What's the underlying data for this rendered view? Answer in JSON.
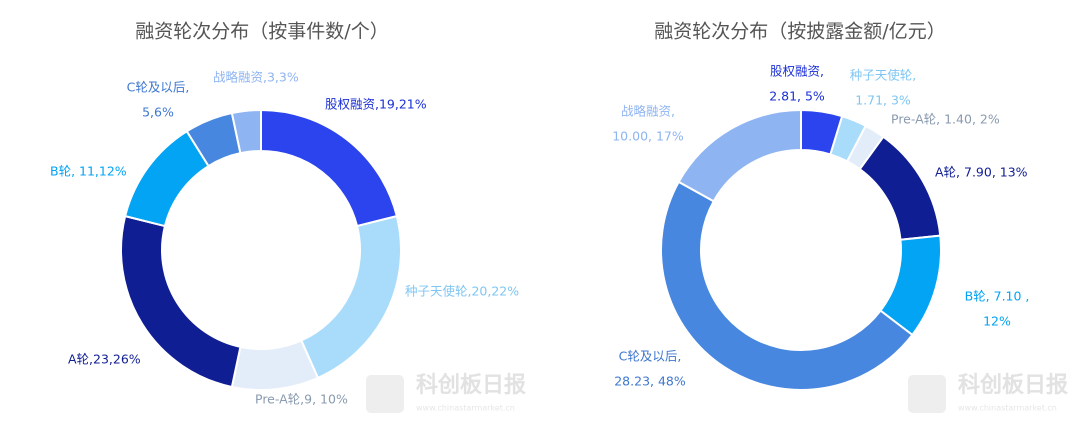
{
  "chart_data": [
    {
      "type": "donut",
      "title": "融资轮次分布（按事件数/个）",
      "categories": [
        "股权融资",
        "种子天使轮",
        "Pre-A轮",
        "A轮",
        "B轮",
        "C轮及以后",
        "战略融资"
      ],
      "values": [
        19,
        20,
        9,
        23,
        11,
        5,
        3
      ],
      "labels": [
        [
          "股权融资,19,21%"
        ],
        [
          "种子天使轮,20,22%"
        ],
        [
          "Pre-A轮,9, 10%"
        ],
        [
          "A轮,23,26%"
        ],
        [
          "B轮, 11,12%"
        ],
        [
          "C轮及以后,",
          "5,6%"
        ],
        [
          "战略融资,3,3%"
        ]
      ],
      "colors": [
        "#2b44ee",
        "#a9dcfb",
        "#e3edf9",
        "#101e94",
        "#03a4f4",
        "#4787e0",
        "#8fb4f2"
      ],
      "label_colors": [
        "#1a2fd6",
        "#7fc6f2",
        "#8a9bb0",
        "#101e94",
        "#03a4f4",
        "#3f78cf",
        "#8fb4f2"
      ]
    },
    {
      "type": "donut",
      "title": "融资轮次分布（按披露金额/亿元）",
      "categories": [
        "股权融资",
        "种子天使轮",
        "Pre-A轮",
        "A轮",
        "B轮",
        "C轮及以后",
        "战略融资"
      ],
      "values": [
        2.81,
        1.71,
        1.4,
        7.9,
        7.1,
        28.23,
        10.0
      ],
      "labels": [
        [
          "股权融资,",
          "2.81, 5%"
        ],
        [
          "种子天使轮,",
          "1.71, 3%"
        ],
        [
          "Pre-A轮, 1.40, 2%"
        ],
        [
          "A轮, 7.90, 13%"
        ],
        [
          "B轮, 7.10 ,",
          "12%"
        ],
        [
          "C轮及以后,",
          "28.23, 48%"
        ],
        [
          "战略融资,",
          "10.00, 17%"
        ]
      ],
      "colors": [
        "#2b44ee",
        "#a9dcfb",
        "#e3edf9",
        "#101e94",
        "#03a4f4",
        "#4787e0",
        "#8fb4f2"
      ],
      "label_colors": [
        "#1a2fd6",
        "#7fc6f2",
        "#8a9bb0",
        "#101e94",
        "#03a4f4",
        "#3f78cf",
        "#8fb4f2"
      ]
    }
  ],
  "watermark": {
    "name": "科创板日报",
    "url": "www.chinastarmarket.cn"
  }
}
